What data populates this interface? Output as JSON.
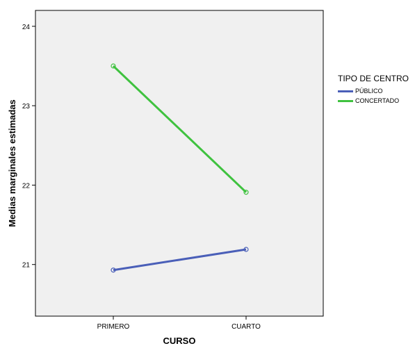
{
  "chart_data": {
    "type": "line",
    "title": "",
    "xlabel": "CURSO",
    "ylabel": "Medias marginales estimadas",
    "categories": [
      "PRIMERO",
      "CUARTO"
    ],
    "yticks": [
      21,
      22,
      23,
      24
    ],
    "ylim": [
      20.35,
      24.2
    ],
    "grid": false,
    "plot_background": "#f0f0f0",
    "legend": {
      "title": "TIPO DE CENTRO",
      "placement": "right"
    },
    "series": [
      {
        "name": "PÚBLICO",
        "values": [
          20.93,
          21.19
        ],
        "color": "#4a5fb8"
      },
      {
        "name": "CONCERTADO",
        "values": [
          23.5,
          21.91
        ],
        "color": "#3fc23f"
      }
    ]
  }
}
